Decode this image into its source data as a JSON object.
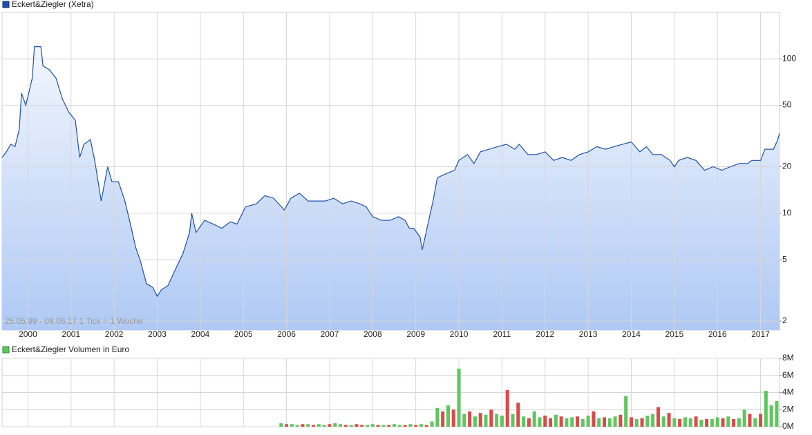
{
  "chart_data": [
    {
      "type": "line",
      "annotation": "25.05.99 - 09.06.17   1 Tick = 1 Woche",
      "log_y": true,
      "grid": true,
      "x": [
        1999.4,
        1999.5,
        1999.6,
        1999.7,
        1999.8,
        1999.85,
        1999.95,
        2000.1,
        2000.15,
        2000.3,
        2000.35,
        2000.5,
        2000.65,
        2000.8,
        2000.95,
        2001.1,
        2001.2,
        2001.3,
        2001.45,
        2001.55,
        2001.7,
        2001.85,
        2001.95,
        2002.1,
        2002.25,
        2002.4,
        2002.5,
        2002.6,
        2002.75,
        2002.9,
        2003.0,
        2003.1,
        2003.25,
        2003.45,
        2003.6,
        2003.75,
        2003.8,
        2003.9,
        2004.1,
        2004.3,
        2004.5,
        2004.7,
        2004.85,
        2005.05,
        2005.3,
        2005.5,
        2005.7,
        2005.95,
        2006.1,
        2006.3,
        2006.5,
        2006.7,
        2006.9,
        2007.1,
        2007.3,
        2007.5,
        2007.7,
        2007.85,
        2008.0,
        2008.2,
        2008.4,
        2008.6,
        2008.75,
        2008.85,
        2008.95,
        2009.1,
        2009.15,
        2009.3,
        2009.4,
        2009.5,
        2009.7,
        2009.9,
        2010.0,
        2010.2,
        2010.35,
        2010.5,
        2010.7,
        2010.9,
        2011.1,
        2011.3,
        2011.4,
        2011.6,
        2011.8,
        2012.0,
        2012.2,
        2012.4,
        2012.6,
        2012.8,
        2013.0,
        2013.2,
        2013.4,
        2013.6,
        2013.8,
        2014.0,
        2014.2,
        2014.35,
        2014.5,
        2014.7,
        2014.9,
        2015.0,
        2015.1,
        2015.3,
        2015.5,
        2015.7,
        2015.9,
        2016.1,
        2016.3,
        2016.5,
        2016.7,
        2016.8,
        2017.0,
        2017.1,
        2017.3,
        2017.4,
        2017.44
      ],
      "series": [
        {
          "name": "Eckert&Ziegler (Xetra)",
          "color": "#1f4fa8",
          "values": [
            23,
            25,
            28,
            27,
            35,
            60,
            50,
            75,
            120,
            120,
            90,
            85,
            75,
            55,
            45,
            40,
            23,
            28,
            30,
            22,
            12,
            20,
            16,
            16,
            12,
            8,
            6,
            5,
            3.5,
            3.3,
            2.9,
            3.2,
            3.4,
            4.5,
            5.5,
            7.5,
            10,
            7.5,
            9,
            8.5,
            8,
            8.8,
            8.5,
            11,
            11.5,
            13,
            12.5,
            10.5,
            12.5,
            13.5,
            12,
            12,
            12,
            12.5,
            11.5,
            12,
            11.5,
            11,
            9.5,
            9,
            9,
            9.5,
            9,
            8,
            8,
            7,
            5.8,
            9,
            12,
            17,
            18,
            19,
            22,
            24,
            21,
            25,
            26,
            27,
            28,
            26,
            28,
            24,
            24,
            25,
            22,
            23,
            22,
            24,
            25,
            27,
            26,
            27,
            28,
            29,
            25,
            27,
            24,
            24,
            22,
            20,
            22,
            23,
            22,
            19,
            20,
            19,
            20,
            21,
            21,
            22,
            22,
            26,
            26,
            30,
            33
          ]
        }
      ],
      "xlim": [
        1999.4,
        2017.44
      ],
      "xticks": [
        2000,
        2001,
        2002,
        2003,
        2004,
        2005,
        2006,
        2007,
        2008,
        2009,
        2010,
        2011,
        2012,
        2013,
        2014,
        2015,
        2016,
        2017
      ],
      "ylim": [
        1.75,
        200
      ],
      "yticks": [
        2,
        5,
        10,
        20,
        50,
        100
      ]
    },
    {
      "type": "bar",
      "grid": true,
      "x": [
        2005.875,
        2006,
        2006.125,
        2006.25,
        2006.375,
        2006.5,
        2006.625,
        2006.75,
        2006.875,
        2007,
        2007.125,
        2007.25,
        2007.375,
        2007.5,
        2007.625,
        2007.75,
        2007.875,
        2008,
        2008.125,
        2008.25,
        2008.375,
        2008.5,
        2008.625,
        2008.75,
        2008.875,
        2009,
        2009.125,
        2009.25,
        2009.375,
        2009.5,
        2009.625,
        2009.75,
        2009.875,
        2010,
        2010.125,
        2010.25,
        2010.375,
        2010.5,
        2010.625,
        2010.75,
        2010.875,
        2011,
        2011.125,
        2011.25,
        2011.375,
        2011.5,
        2011.625,
        2011.75,
        2011.875,
        2012,
        2012.125,
        2012.25,
        2012.375,
        2012.5,
        2012.625,
        2012.75,
        2012.875,
        2013,
        2013.125,
        2013.25,
        2013.375,
        2013.5,
        2013.625,
        2013.75,
        2013.875,
        2014,
        2014.125,
        2014.25,
        2014.375,
        2014.5,
        2014.625,
        2014.75,
        2014.875,
        2015,
        2015.125,
        2015.25,
        2015.375,
        2015.5,
        2015.625,
        2015.75,
        2015.875,
        2016,
        2016.125,
        2016.25,
        2016.375,
        2016.5,
        2016.625,
        2016.75,
        2016.875,
        2017,
        2017.125,
        2017.25,
        2017.375
      ],
      "series": [
        {
          "name": "Eckert&Ziegler Volumen in Euro",
          "color": "#5ec65e",
          "values": [
            0.4,
            0.3,
            0.3,
            0.2,
            0.3,
            0.3,
            0.2,
            0.3,
            0.2,
            0.3,
            0.4,
            0.3,
            0.2,
            0.2,
            0.3,
            0.2,
            0.2,
            0.3,
            0.2,
            0.2,
            0.2,
            0.3,
            0.2,
            0.2,
            0.3,
            0.2,
            0.3,
            0.2,
            0.6,
            2.2,
            1.8,
            2.5,
            2.0,
            6.8,
            1.5,
            1.8,
            1.2,
            1.6,
            1.4,
            2.0,
            1.5,
            1.3,
            4.3,
            1.5,
            2.8,
            1.2,
            1.0,
            1.8,
            1.1,
            1.3,
            1.0,
            1.4,
            1.2,
            1.0,
            1.1,
            1.2,
            0.9,
            1.3,
            1.8,
            1.0,
            1.1,
            1.0,
            1.2,
            1.4,
            3.6,
            1.1,
            0.9,
            1.0,
            1.3,
            1.5,
            2.3,
            1.2,
            1.6,
            1.0,
            0.9,
            1.1,
            1.0,
            1.2,
            0.8,
            0.9,
            0.9,
            1.1,
            1.0,
            1.2,
            0.9,
            1.0,
            2.0,
            1.5,
            1.0,
            1.5,
            4.2,
            2.5,
            3.0
          ],
          "colors": [
            "#5ec65e",
            "#d94a4a",
            "#5ec65e",
            "#5ec65e",
            "#d94a4a",
            "#5ec65e",
            "#d94a4a",
            "#5ec65e",
            "#5ec65e",
            "#d94a4a",
            "#5ec65e",
            "#5ec65e",
            "#d94a4a",
            "#5ec65e",
            "#d94a4a",
            "#d94a4a",
            "#5ec65e",
            "#5ec65e",
            "#d94a4a",
            "#5ec65e",
            "#d94a4a",
            "#5ec65e",
            "#5ec65e",
            "#d94a4a",
            "#5ec65e",
            "#d94a4a",
            "#5ec65e",
            "#d94a4a",
            "#5ec65e",
            "#5ec65e",
            "#d94a4a",
            "#5ec65e",
            "#d94a4a",
            "#5ec65e",
            "#5ec65e",
            "#d94a4a",
            "#5ec65e",
            "#d94a4a",
            "#5ec65e",
            "#d94a4a",
            "#5ec65e",
            "#5ec65e",
            "#d94a4a",
            "#5ec65e",
            "#d94a4a",
            "#5ec65e",
            "#d94a4a",
            "#5ec65e",
            "#5ec65e",
            "#d94a4a",
            "#d94a4a",
            "#5ec65e",
            "#d94a4a",
            "#5ec65e",
            "#5ec65e",
            "#d94a4a",
            "#5ec65e",
            "#5ec65e",
            "#d94a4a",
            "#5ec65e",
            "#d94a4a",
            "#5ec65e",
            "#5ec65e",
            "#d94a4a",
            "#5ec65e",
            "#d94a4a",
            "#5ec65e",
            "#d94a4a",
            "#5ec65e",
            "#5ec65e",
            "#d94a4a",
            "#5ec65e",
            "#d94a4a",
            "#5ec65e",
            "#d94a4a",
            "#5ec65e",
            "#5ec65e",
            "#d94a4a",
            "#5ec65e",
            "#d94a4a",
            "#5ec65e",
            "#5ec65e",
            "#d94a4a",
            "#5ec65e",
            "#d94a4a",
            "#5ec65e",
            "#5ec65e",
            "#d94a4a",
            "#5ec65e",
            "#d94a4a",
            "#5ec65e",
            "#5ec65e",
            "#5ec65e"
          ]
        }
      ],
      "xlim": [
        1999.4,
        2017.44
      ],
      "xticks": [
        2000,
        2001,
        2002,
        2003,
        2004,
        2005,
        2006,
        2007,
        2008,
        2009,
        2010,
        2011,
        2012,
        2013,
        2014,
        2015,
        2016,
        2017
      ],
      "ylim": [
        0,
        8
      ],
      "yticks": [
        {
          "value": 0,
          "label": "0M"
        },
        {
          "value": 2,
          "label": "2M"
        },
        {
          "value": 4,
          "label": "4M"
        },
        {
          "value": 6,
          "label": "6M"
        },
        {
          "value": 8,
          "label": "8M"
        }
      ]
    }
  ]
}
